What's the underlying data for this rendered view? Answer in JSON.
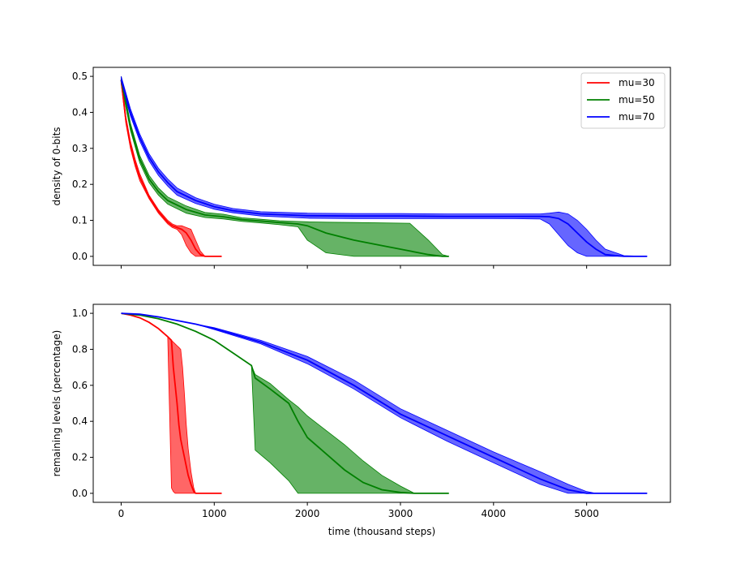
{
  "chart_data": [
    {
      "type": "line",
      "panel": "top",
      "ylabel": "density of 0-bits",
      "xlabel": "",
      "xlim": [
        -300,
        5900
      ],
      "ylim": [
        -0.025,
        0.525
      ],
      "yticks": [
        0.0,
        0.1,
        0.2,
        0.3,
        0.4,
        0.5
      ],
      "ytick_labels": [
        "0.0",
        "0.1",
        "0.2",
        "0.3",
        "0.4",
        "0.5"
      ],
      "xticks": [
        0,
        1000,
        2000,
        3000,
        4000,
        5000
      ],
      "legend": {
        "location": "top-right",
        "entries": [
          "mu=30",
          "mu=50",
          "mu=70"
        ]
      },
      "series": [
        {
          "name": "mu=30",
          "color": "#ff0000",
          "x": [
            0,
            50,
            100,
            150,
            200,
            300,
            400,
            500,
            550,
            600,
            650,
            700,
            750,
            800,
            850,
            900,
            1080
          ],
          "mean": [
            0.49,
            0.38,
            0.31,
            0.26,
            0.22,
            0.165,
            0.125,
            0.095,
            0.085,
            0.08,
            0.075,
            0.065,
            0.045,
            0.02,
            0.005,
            0.0,
            0.0
          ],
          "low": [
            0.48,
            0.37,
            0.3,
            0.25,
            0.21,
            0.16,
            0.12,
            0.09,
            0.08,
            0.075,
            0.06,
            0.03,
            0.01,
            0.0,
            0.0,
            0.0,
            0.0
          ],
          "high": [
            0.5,
            0.39,
            0.32,
            0.27,
            0.23,
            0.17,
            0.13,
            0.1,
            0.09,
            0.085,
            0.085,
            0.08,
            0.075,
            0.045,
            0.015,
            0.0,
            0.0
          ]
        },
        {
          "name": "mu=50",
          "color": "#008000",
          "x": [
            0,
            100,
            200,
            300,
            400,
            500,
            700,
            900,
            1100,
            1300,
            1500,
            1700,
            1900,
            2000,
            2200,
            2500,
            2800,
            3100,
            3300,
            3450,
            3520
          ],
          "mean": [
            0.49,
            0.36,
            0.27,
            0.215,
            0.18,
            0.155,
            0.13,
            0.115,
            0.11,
            0.102,
            0.098,
            0.094,
            0.09,
            0.085,
            0.065,
            0.045,
            0.03,
            0.015,
            0.005,
            0.0,
            0.0
          ],
          "low": [
            0.48,
            0.35,
            0.26,
            0.205,
            0.17,
            0.145,
            0.12,
            0.108,
            0.104,
            0.097,
            0.093,
            0.088,
            0.082,
            0.045,
            0.01,
            0.0,
            0.0,
            0.0,
            0.0,
            0.0,
            0.0
          ],
          "high": [
            0.5,
            0.37,
            0.28,
            0.225,
            0.19,
            0.165,
            0.14,
            0.122,
            0.117,
            0.107,
            0.103,
            0.099,
            0.097,
            0.096,
            0.095,
            0.094,
            0.093,
            0.092,
            0.045,
            0.005,
            0.0
          ]
        },
        {
          "name": "mu=70",
          "color": "#0000ff",
          "x": [
            0,
            100,
            200,
            300,
            400,
            500,
            600,
            800,
            1000,
            1200,
            1500,
            2000,
            2500,
            3000,
            3500,
            4000,
            4500,
            4600,
            4700,
            4800,
            4900,
            5000,
            5100,
            5200,
            5400,
            5650
          ],
          "mean": [
            0.49,
            0.4,
            0.33,
            0.275,
            0.235,
            0.205,
            0.18,
            0.155,
            0.138,
            0.127,
            0.118,
            0.113,
            0.112,
            0.112,
            0.111,
            0.111,
            0.111,
            0.11,
            0.105,
            0.09,
            0.065,
            0.04,
            0.02,
            0.005,
            0.0,
            0.0
          ],
          "low": [
            0.48,
            0.39,
            0.32,
            0.265,
            0.225,
            0.195,
            0.17,
            0.147,
            0.131,
            0.121,
            0.112,
            0.106,
            0.105,
            0.105,
            0.105,
            0.105,
            0.104,
            0.09,
            0.06,
            0.03,
            0.01,
            0.0,
            0.0,
            0.0,
            0.0,
            0.0
          ],
          "high": [
            0.5,
            0.41,
            0.34,
            0.285,
            0.245,
            0.215,
            0.19,
            0.163,
            0.145,
            0.133,
            0.124,
            0.12,
            0.119,
            0.119,
            0.118,
            0.118,
            0.118,
            0.12,
            0.123,
            0.118,
            0.1,
            0.075,
            0.045,
            0.02,
            0.002,
            0.0
          ]
        }
      ]
    },
    {
      "type": "line",
      "panel": "bottom",
      "ylabel": "remaining levels (percentage)",
      "xlabel": "time (thousand steps)",
      "xlim": [
        -300,
        5900
      ],
      "ylim": [
        -0.05,
        1.05
      ],
      "yticks": [
        0.0,
        0.2,
        0.4,
        0.6,
        0.8,
        1.0
      ],
      "ytick_labels": [
        "0.0",
        "0.2",
        "0.4",
        "0.6",
        "0.8",
        "1.0"
      ],
      "xticks": [
        0,
        1000,
        2000,
        3000,
        4000,
        5000
      ],
      "xtick_labels": [
        "0",
        "1000",
        "2000",
        "3000",
        "4000",
        "5000"
      ],
      "series": [
        {
          "name": "mu=30",
          "color": "#ff0000",
          "x": [
            0,
            100,
            200,
            300,
            400,
            500,
            540,
            560,
            580,
            600,
            620,
            640,
            660,
            680,
            700,
            720,
            750,
            780,
            800,
            1080
          ],
          "mean": [
            1.0,
            0.99,
            0.975,
            0.95,
            0.915,
            0.87,
            0.85,
            0.7,
            0.6,
            0.5,
            0.38,
            0.3,
            0.25,
            0.2,
            0.15,
            0.1,
            0.05,
            0.01,
            0.0,
            0.0
          ],
          "low": [
            1.0,
            0.99,
            0.975,
            0.95,
            0.915,
            0.87,
            0.03,
            0.01,
            0.0,
            0.0,
            0.0,
            0.0,
            0.0,
            0.0,
            0.0,
            0.0,
            0.0,
            0.0,
            0.0,
            0.0
          ],
          "high": [
            1.0,
            0.99,
            0.975,
            0.95,
            0.915,
            0.87,
            0.85,
            0.84,
            0.83,
            0.82,
            0.81,
            0.8,
            0.7,
            0.55,
            0.38,
            0.25,
            0.12,
            0.03,
            0.0,
            0.0
          ]
        },
        {
          "name": "mu=50",
          "color": "#008000",
          "x": [
            0,
            200,
            400,
            600,
            800,
            1000,
            1200,
            1400,
            1440,
            1600,
            1800,
            1900,
            2000,
            2200,
            2400,
            2600,
            2800,
            3000,
            3150,
            3520
          ],
          "mean": [
            1.0,
            0.99,
            0.97,
            0.94,
            0.9,
            0.85,
            0.78,
            0.71,
            0.64,
            0.58,
            0.5,
            0.4,
            0.31,
            0.22,
            0.13,
            0.06,
            0.02,
            0.005,
            0.0,
            0.0
          ],
          "low": [
            1.0,
            0.99,
            0.97,
            0.94,
            0.9,
            0.85,
            0.78,
            0.71,
            0.24,
            0.17,
            0.07,
            0.0,
            0.0,
            0.0,
            0.0,
            0.0,
            0.0,
            0.0,
            0.0,
            0.0
          ],
          "high": [
            1.0,
            0.99,
            0.97,
            0.94,
            0.9,
            0.85,
            0.78,
            0.71,
            0.66,
            0.61,
            0.52,
            0.48,
            0.43,
            0.35,
            0.27,
            0.18,
            0.1,
            0.04,
            0.0,
            0.0
          ]
        },
        {
          "name": "mu=70",
          "color": "#0000ff",
          "x": [
            0,
            200,
            400,
            600,
            800,
            1000,
            1500,
            2000,
            2500,
            3000,
            3500,
            4000,
            4500,
            4800,
            5000,
            5100,
            5650
          ],
          "mean": [
            1.0,
            0.995,
            0.98,
            0.96,
            0.94,
            0.915,
            0.84,
            0.74,
            0.6,
            0.44,
            0.32,
            0.2,
            0.08,
            0.02,
            0.0,
            0.0,
            0.0
          ],
          "low": [
            1.0,
            0.995,
            0.98,
            0.96,
            0.94,
            0.91,
            0.83,
            0.72,
            0.58,
            0.42,
            0.29,
            0.17,
            0.05,
            0.0,
            0.0,
            0.0,
            0.0
          ],
          "high": [
            1.0,
            0.995,
            0.98,
            0.96,
            0.94,
            0.92,
            0.85,
            0.76,
            0.63,
            0.47,
            0.35,
            0.23,
            0.12,
            0.05,
            0.01,
            0.0,
            0.0
          ]
        }
      ]
    }
  ]
}
